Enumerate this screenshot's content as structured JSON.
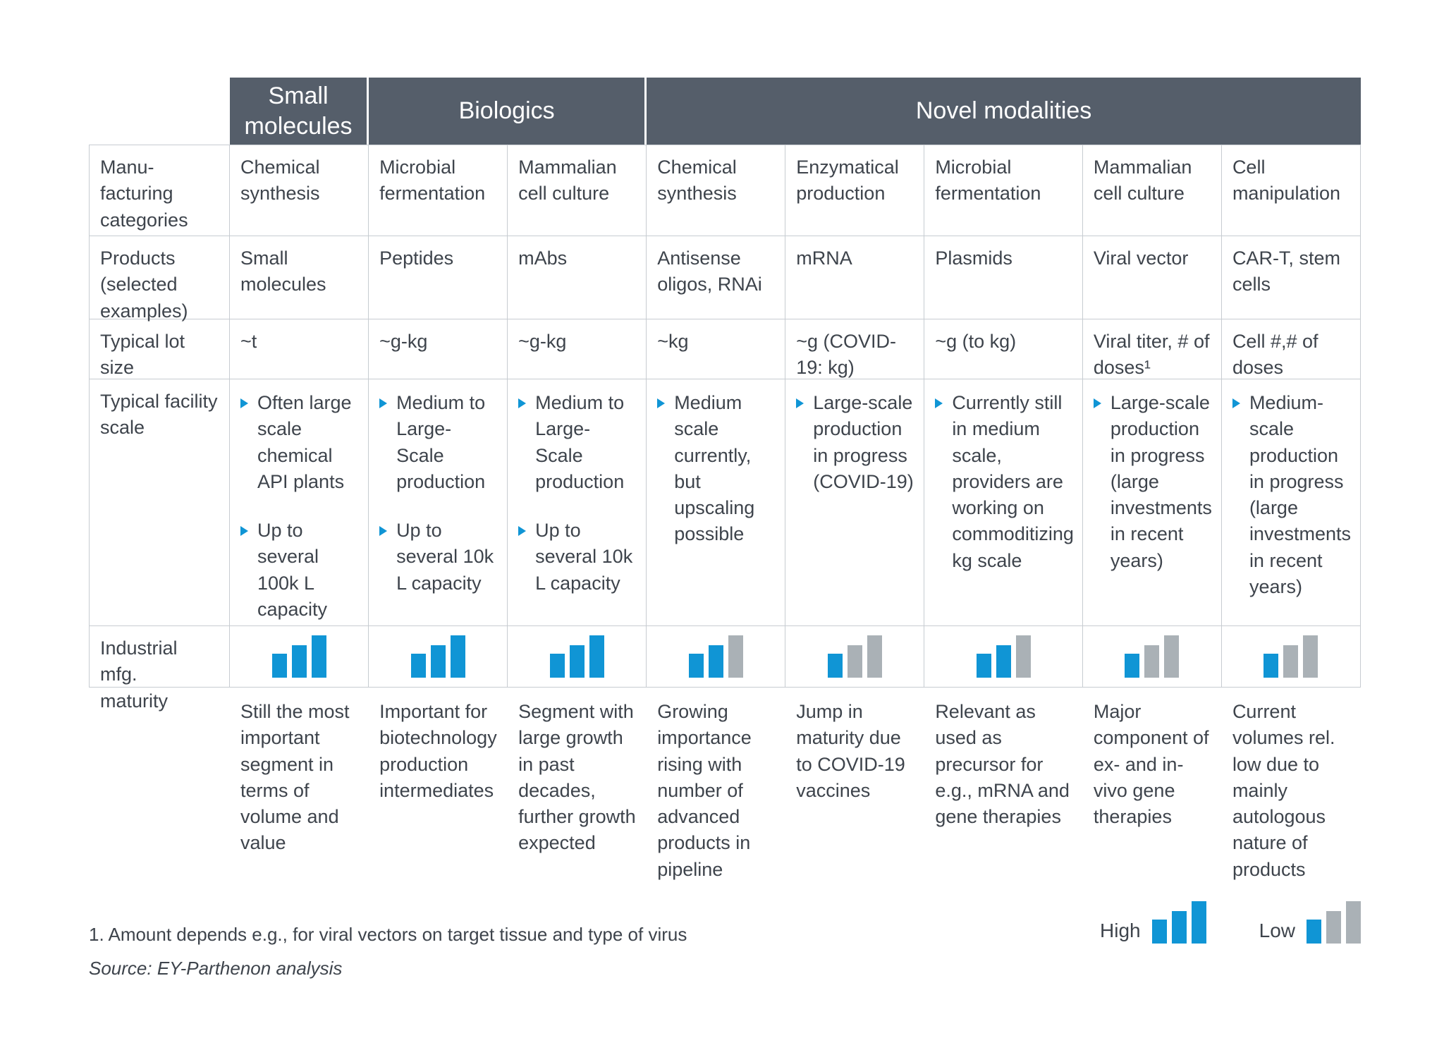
{
  "colors": {
    "header_bg": "#555e6a",
    "bar_blue": "#1095d5",
    "bar_gray": "#aab1b6",
    "border": "#c7ccd1",
    "text": "#3e444c"
  },
  "groups": [
    {
      "label": "Small molecules",
      "span": 1
    },
    {
      "label": "Biologics",
      "span": 2
    },
    {
      "label": "Novel modalities",
      "span": 5
    }
  ],
  "row_labels": [
    "Manu-\nfacturing\ncategories",
    "Products\n(selected\nexamples)",
    "Typical lot\nsize",
    "Typical facility\nscale",
    "Industrial mfg.\nmaturity"
  ],
  "maturity_scale_note": "3 ascending bars; number of blue bars encodes maturity (3 = High, 1 = Low)",
  "columns": [
    {
      "group": "Small molecules",
      "category": "Chemical synthesis",
      "product": "Small molecules",
      "lot_size": "~t",
      "facility_scale": [
        "Often large scale chemical API plants",
        "Up to several 100k L capacity"
      ],
      "maturity_blue_bars": 3,
      "description": "Still the most important segment in terms of volume and value"
    },
    {
      "group": "Biologics",
      "category": "Microbial fermentation",
      "product": "Peptides",
      "lot_size": "~g-kg",
      "facility_scale": [
        "Medium to Large-Scale production",
        "Up to several 10k L capacity"
      ],
      "maturity_blue_bars": 3,
      "description": "Important for biotechnology production intermediates"
    },
    {
      "group": "Biologics",
      "category": "Mammalian cell culture",
      "product": "mAbs",
      "lot_size": "~g-kg",
      "facility_scale": [
        "Medium to Large-Scale production",
        "Up to several 10k L capacity"
      ],
      "maturity_blue_bars": 3,
      "description": "Segment with large growth in past decades, further growth expected"
    },
    {
      "group": "Novel modalities",
      "category": "Chemical synthesis",
      "product": "Antisense oligos, RNAi",
      "lot_size": "~kg",
      "facility_scale": [
        "Medium scale currently, but upscaling possible"
      ],
      "maturity_blue_bars": 2,
      "description": "Growing importance rising with number of advanced products in pipeline"
    },
    {
      "group": "Novel modalities",
      "category": "Enzymatical production",
      "product": "mRNA",
      "lot_size": "~g (COVID-19: kg)",
      "facility_scale": [
        "Large-scale production in progress (COVID-19)"
      ],
      "maturity_blue_bars": 1,
      "description": "Jump in maturity due to COVID-19 vaccines"
    },
    {
      "group": "Novel modalities",
      "category": "Microbial fermentation",
      "product": "Plasmids",
      "lot_size": "~g (to kg)",
      "facility_scale": [
        "Currently still in medium scale, providers are working on commoditizing kg scale"
      ],
      "maturity_blue_bars": 2,
      "description": "Relevant as used as precursor for e.g., mRNA and gene therapies"
    },
    {
      "group": "Novel modalities",
      "category": "Mammalian cell culture",
      "product": "Viral vector",
      "lot_size": "Viral titer, # of doses¹",
      "facility_scale": [
        "Large-scale production in progress (large investments in recent years)"
      ],
      "maturity_blue_bars": 1,
      "description": "Major component of ex- and in-vivo gene therapies"
    },
    {
      "group": "Novel modalities",
      "category": "Cell manipulation",
      "product": "CAR-T, stem cells",
      "lot_size": "Cell #,# of doses",
      "facility_scale": [
        "Medium-scale production in progress (large investments in recent years)"
      ],
      "maturity_blue_bars": 1,
      "description": "Current volumes rel. low due to mainly autologous nature of products"
    }
  ],
  "footnote": "1. Amount depends e.g., for viral vectors on target tissue and type of virus",
  "source": "Source: EY-Parthenon analysis",
  "legend": [
    {
      "label": "High",
      "blue_bars": 3
    },
    {
      "label": "Low",
      "blue_bars": 1
    }
  ]
}
